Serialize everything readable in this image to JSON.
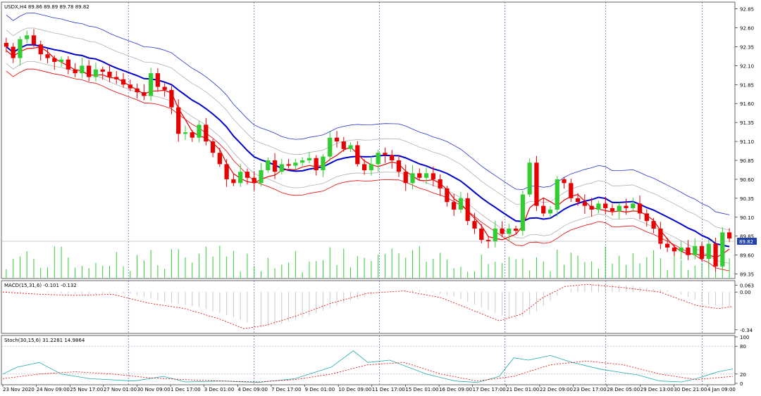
{
  "colors": {
    "bull": "#33cc33",
    "bear": "#e60000",
    "ma_thick": "#0000cc",
    "band_outer": "#2233cc",
    "band_inner": "#b0b0b0",
    "ma_red": "#e60000",
    "volume": "#33cc33",
    "grid": "#3344aa",
    "macd_hist": "#c8c8c8",
    "macd_signal": "#e60000",
    "stoch_main": "#22aaaa",
    "stoch_signal": "#e60000",
    "price_label_bg": "#2244aa"
  },
  "chart_data": [
    {
      "type": "candlestick",
      "title": "USDX,H4  89.86 89.89 89.78 89.82",
      "symbol_label": "USDX,H4",
      "ohlc_label": "89.86 89.89 89.78 89.82",
      "ylim": [
        89.3,
        92.92
      ],
      "y_ticks": [
        "92.85",
        "92.60",
        "92.35",
        "92.10",
        "91.85",
        "91.60",
        "91.35",
        "91.10",
        "90.85",
        "90.60",
        "90.35",
        "90.10",
        "89.85",
        "89.60",
        "89.35"
      ],
      "current_price": "89.82",
      "current_value": 89.82,
      "x_labels": [
        "23 Nov 2020",
        "24 Nov 09:00",
        "25 Nov 17:00",
        "27 Nov 01:00",
        "30 Nov 09:00",
        "1 Dec 17:00",
        "3 Dec 01:00",
        "4 Dec 09:00",
        "7 Dec 17:00",
        "9 Dec 01:00",
        "10 Dec 09:00",
        "11 Dec 17:00",
        "15 Dec 01:00",
        "16 Dec 09:00",
        "17 Dec 17:00",
        "21 Dec 01:00",
        "22 Dec 09:00",
        "23 Dec 17:00",
        "28 Dec 05:00",
        "29 Dec 13:00",
        "30 Dec 21:00",
        "4 Jan 09:00"
      ],
      "closes": [
        92.35,
        92.2,
        92.45,
        92.5,
        92.38,
        92.25,
        92.2,
        92.15,
        92.18,
        92.05,
        92.0,
        92.1,
        91.95,
        92.05,
        92.02,
        91.95,
        91.92,
        91.85,
        91.8,
        91.75,
        91.7,
        92.0,
        91.82,
        91.78,
        91.55,
        91.2,
        91.22,
        91.15,
        91.32,
        91.1,
        90.95,
        90.8,
        90.6,
        90.55,
        90.7,
        90.62,
        90.55,
        90.72,
        90.85,
        90.7,
        90.8,
        90.78,
        90.82,
        90.85,
        90.88,
        90.72,
        90.9,
        91.15,
        91.1,
        91.0,
        91.05,
        90.8,
        90.72,
        90.8,
        90.95,
        90.92,
        90.85,
        90.7,
        90.55,
        90.68,
        90.62,
        90.68,
        90.6,
        90.48,
        90.3,
        90.2,
        90.35,
        90.05,
        89.95,
        89.8,
        89.78,
        89.95,
        89.88,
        89.95,
        89.92,
        90.4,
        90.82,
        90.25,
        90.15,
        90.2,
        90.6,
        90.55,
        90.35,
        90.3,
        90.25,
        90.2,
        90.28,
        90.22,
        90.18,
        90.25,
        90.22,
        90.28,
        90.15,
        90.05,
        89.95,
        89.75,
        89.7,
        89.65,
        89.7,
        89.6,
        89.72,
        89.55,
        89.75,
        89.45,
        89.9,
        89.82
      ],
      "volume_range": [
        0,
        100
      ]
    },
    {
      "type": "line",
      "title": "MACD(15,31,6) -0.101 -0.132",
      "label": "MACD(15,31,6)",
      "values_label": "-0.101 -0.132",
      "ylim": [
        -0.36,
        0.09
      ],
      "y_ticks": [
        "0.063",
        "0.00",
        "-0.34"
      ],
      "signal_points": [
        [
          0,
          0.0
        ],
        [
          0.05,
          -0.02
        ],
        [
          0.1,
          -0.03
        ],
        [
          0.15,
          -0.02
        ],
        [
          0.2,
          -0.1
        ],
        [
          0.25,
          -0.15
        ],
        [
          0.3,
          -0.25
        ],
        [
          0.33,
          -0.33
        ],
        [
          0.36,
          -0.3
        ],
        [
          0.4,
          -0.22
        ],
        [
          0.45,
          -0.1
        ],
        [
          0.5,
          -0.01
        ],
        [
          0.55,
          0.01
        ],
        [
          0.6,
          -0.05
        ],
        [
          0.65,
          -0.18
        ],
        [
          0.68,
          -0.26
        ],
        [
          0.71,
          -0.2
        ],
        [
          0.74,
          -0.05
        ],
        [
          0.77,
          0.05
        ],
        [
          0.8,
          0.07
        ],
        [
          0.85,
          0.04
        ],
        [
          0.9,
          0.0
        ],
        [
          0.95,
          -0.12
        ],
        [
          0.98,
          -0.15
        ],
        [
          1.0,
          -0.13
        ]
      ]
    },
    {
      "type": "line",
      "title": "Stoch(30,15,6) 31.2281 14.9864",
      "label": "Stoch(30,15,6)",
      "values_label": "31.2281 14.9864",
      "ylim": [
        0,
        100
      ],
      "y_ticks": [
        "100",
        "80",
        "20",
        "0"
      ],
      "main_points": [
        [
          0,
          20
        ],
        [
          0.02,
          35
        ],
        [
          0.05,
          45
        ],
        [
          0.08,
          20
        ],
        [
          0.12,
          10
        ],
        [
          0.18,
          5
        ],
        [
          0.22,
          15
        ],
        [
          0.25,
          3
        ],
        [
          0.3,
          5
        ],
        [
          0.35,
          2
        ],
        [
          0.4,
          10
        ],
        [
          0.45,
          35
        ],
        [
          0.48,
          70
        ],
        [
          0.5,
          45
        ],
        [
          0.53,
          50
        ],
        [
          0.58,
          20
        ],
        [
          0.62,
          5
        ],
        [
          0.65,
          2
        ],
        [
          0.68,
          15
        ],
        [
          0.7,
          55
        ],
        [
          0.72,
          50
        ],
        [
          0.75,
          60
        ],
        [
          0.78,
          45
        ],
        [
          0.82,
          30
        ],
        [
          0.87,
          18
        ],
        [
          0.9,
          5
        ],
        [
          0.93,
          3
        ],
        [
          0.95,
          10
        ],
        [
          0.98,
          25
        ],
        [
          1.0,
          31
        ]
      ],
      "signal_points": [
        [
          0,
          10
        ],
        [
          0.05,
          20
        ],
        [
          0.1,
          25
        ],
        [
          0.15,
          20
        ],
        [
          0.2,
          12
        ],
        [
          0.25,
          8
        ],
        [
          0.3,
          5
        ],
        [
          0.35,
          3
        ],
        [
          0.4,
          8
        ],
        [
          0.45,
          20
        ],
        [
          0.5,
          40
        ],
        [
          0.55,
          45
        ],
        [
          0.6,
          20
        ],
        [
          0.65,
          5
        ],
        [
          0.7,
          15
        ],
        [
          0.75,
          40
        ],
        [
          0.8,
          48
        ],
        [
          0.85,
          40
        ],
        [
          0.9,
          20
        ],
        [
          0.95,
          8
        ],
        [
          1.0,
          15
        ]
      ]
    }
  ]
}
